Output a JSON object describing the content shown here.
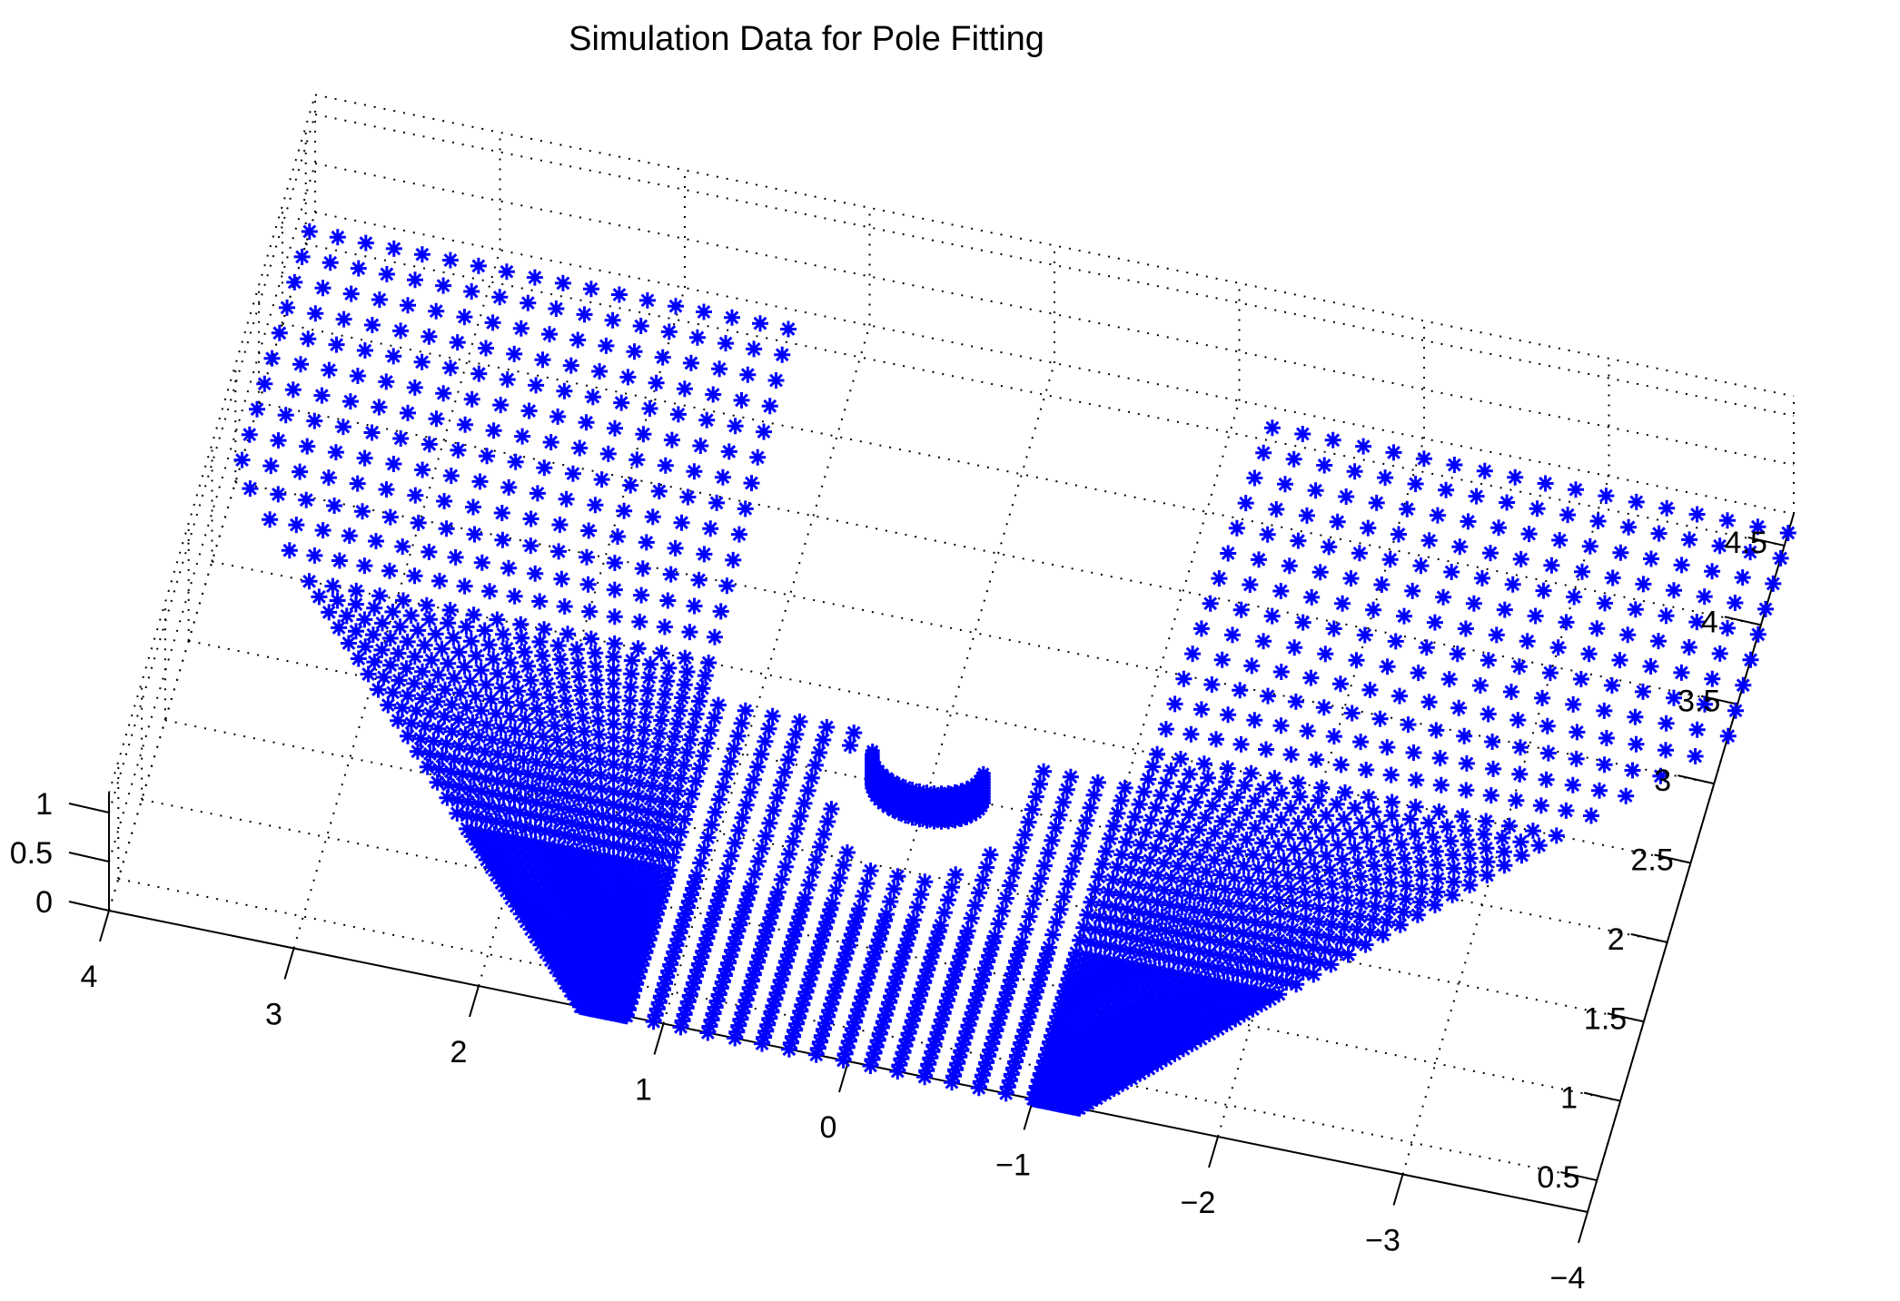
{
  "chart_data": {
    "type": "scatter",
    "title": "Simulation Data for Pole Fitting",
    "xlabel": "",
    "ylabel": "",
    "zlabel": "",
    "marker": "*",
    "marker_color": "#0000ff",
    "grid": true,
    "grid_style": "dotted",
    "x_ticks": [
      "4",
      "3",
      "2",
      "1",
      "0",
      "−1",
      "−2",
      "−3",
      "−4"
    ],
    "y_ticks": [
      "0.5",
      "1",
      "1.5",
      "2",
      "2.5",
      "3",
      "3.5",
      "4",
      "4.5"
    ],
    "z_ticks": [
      "0",
      "0.5",
      "1"
    ],
    "xlim": [
      -4,
      4
    ],
    "ylim": [
      0.3,
      4.7
    ],
    "zlim": [
      0,
      1.2
    ],
    "pole": {
      "x": 0,
      "y": 2.0,
      "radius": 0.3
    },
    "surface": "z = 0 on x ∈ [-4, 4], y ∈ [0.3, 4.7], excluding a circular region of radius 0.3 around the pole; pole wall points at z ∈ [0, 0.3]"
  }
}
